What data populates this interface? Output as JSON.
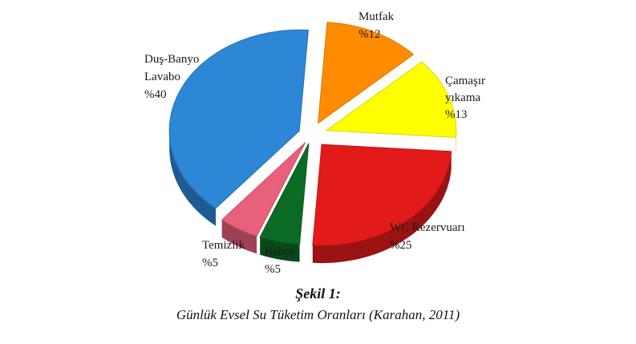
{
  "chart_data": {
    "type": "pie",
    "style": "3d-exploded",
    "slices": [
      {
        "line1": "Mutfak",
        "line2": "",
        "value_label": "%12",
        "value": 12,
        "color": "#FF8C00"
      },
      {
        "line1": "Çamaşır",
        "line2": "yıkama",
        "value_label": "%13",
        "value": 13,
        "color": "#FFFF00"
      },
      {
        "line1": "WC Rezervuarı",
        "line2": "",
        "value_label": "%25",
        "value": 25,
        "color": "#E31A1A"
      },
      {
        "line1": "Bahçe",
        "line2": "",
        "value_label": "%5",
        "value": 5,
        "color": "#0B6B24"
      },
      {
        "line1": "Temizlik",
        "line2": "",
        "value_label": "%5",
        "value": 5,
        "color": "#E8607C"
      },
      {
        "line1": "Duş-Banyo",
        "line2": "Lavabo",
        "value_label": "%40",
        "value": 40,
        "color": "#2E86D6"
      }
    ]
  },
  "caption": {
    "title": "Şekil 1:",
    "subtitle": "Günlük Evsel Su Tüketim Oranları (Karahan, 2011)"
  }
}
